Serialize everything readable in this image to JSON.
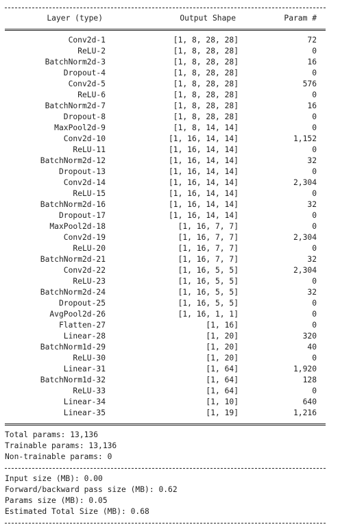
{
  "headers": {
    "layer": "Layer (type)",
    "output_shape": "Output Shape",
    "params": "Param #"
  },
  "rows": [
    {
      "layer": "Conv2d-1",
      "shape": "[1, 8, 28, 28]",
      "params": "72"
    },
    {
      "layer": "ReLU-2",
      "shape": "[1, 8, 28, 28]",
      "params": "0"
    },
    {
      "layer": "BatchNorm2d-3",
      "shape": "[1, 8, 28, 28]",
      "params": "16"
    },
    {
      "layer": "Dropout-4",
      "shape": "[1, 8, 28, 28]",
      "params": "0"
    },
    {
      "layer": "Conv2d-5",
      "shape": "[1, 8, 28, 28]",
      "params": "576"
    },
    {
      "layer": "ReLU-6",
      "shape": "[1, 8, 28, 28]",
      "params": "0"
    },
    {
      "layer": "BatchNorm2d-7",
      "shape": "[1, 8, 28, 28]",
      "params": "16"
    },
    {
      "layer": "Dropout-8",
      "shape": "[1, 8, 28, 28]",
      "params": "0"
    },
    {
      "layer": "MaxPool2d-9",
      "shape": "[1, 8, 14, 14]",
      "params": "0"
    },
    {
      "layer": "Conv2d-10",
      "shape": "[1, 16, 14, 14]",
      "params": "1,152"
    },
    {
      "layer": "ReLU-11",
      "shape": "[1, 16, 14, 14]",
      "params": "0"
    },
    {
      "layer": "BatchNorm2d-12",
      "shape": "[1, 16, 14, 14]",
      "params": "32"
    },
    {
      "layer": "Dropout-13",
      "shape": "[1, 16, 14, 14]",
      "params": "0"
    },
    {
      "layer": "Conv2d-14",
      "shape": "[1, 16, 14, 14]",
      "params": "2,304"
    },
    {
      "layer": "ReLU-15",
      "shape": "[1, 16, 14, 14]",
      "params": "0"
    },
    {
      "layer": "BatchNorm2d-16",
      "shape": "[1, 16, 14, 14]",
      "params": "32"
    },
    {
      "layer": "Dropout-17",
      "shape": "[1, 16, 14, 14]",
      "params": "0"
    },
    {
      "layer": "MaxPool2d-18",
      "shape": "[1, 16, 7, 7]",
      "params": "0"
    },
    {
      "layer": "Conv2d-19",
      "shape": "[1, 16, 7, 7]",
      "params": "2,304"
    },
    {
      "layer": "ReLU-20",
      "shape": "[1, 16, 7, 7]",
      "params": "0"
    },
    {
      "layer": "BatchNorm2d-21",
      "shape": "[1, 16, 7, 7]",
      "params": "32"
    },
    {
      "layer": "Conv2d-22",
      "shape": "[1, 16, 5, 5]",
      "params": "2,304"
    },
    {
      "layer": "ReLU-23",
      "shape": "[1, 16, 5, 5]",
      "params": "0"
    },
    {
      "layer": "BatchNorm2d-24",
      "shape": "[1, 16, 5, 5]",
      "params": "32"
    },
    {
      "layer": "Dropout-25",
      "shape": "[1, 16, 5, 5]",
      "params": "0"
    },
    {
      "layer": "AvgPool2d-26",
      "shape": "[1, 16, 1, 1]",
      "params": "0"
    },
    {
      "layer": "Flatten-27",
      "shape": "[1, 16]",
      "params": "0"
    },
    {
      "layer": "Linear-28",
      "shape": "[1, 20]",
      "params": "320"
    },
    {
      "layer": "BatchNorm1d-29",
      "shape": "[1, 20]",
      "params": "40"
    },
    {
      "layer": "ReLU-30",
      "shape": "[1, 20]",
      "params": "0"
    },
    {
      "layer": "Linear-31",
      "shape": "[1, 64]",
      "params": "1,920"
    },
    {
      "layer": "BatchNorm1d-32",
      "shape": "[1, 64]",
      "params": "128"
    },
    {
      "layer": "ReLU-33",
      "shape": "[1, 64]",
      "params": "0"
    },
    {
      "layer": "Linear-34",
      "shape": "[1, 10]",
      "params": "640"
    },
    {
      "layer": "Linear-35",
      "shape": "[1, 19]",
      "params": "1,216"
    }
  ],
  "params_summary": {
    "total": "Total params: 13,136",
    "trainable": "Trainable params: 13,136",
    "non_trainable": "Non-trainable params: 0"
  },
  "size_summary": {
    "input": "Input size (MB): 0.00",
    "forward_backward": "Forward/backward pass size (MB): 0.62",
    "params": "Params size (MB): 0.05",
    "total": "Estimated Total Size (MB): 0.68"
  }
}
